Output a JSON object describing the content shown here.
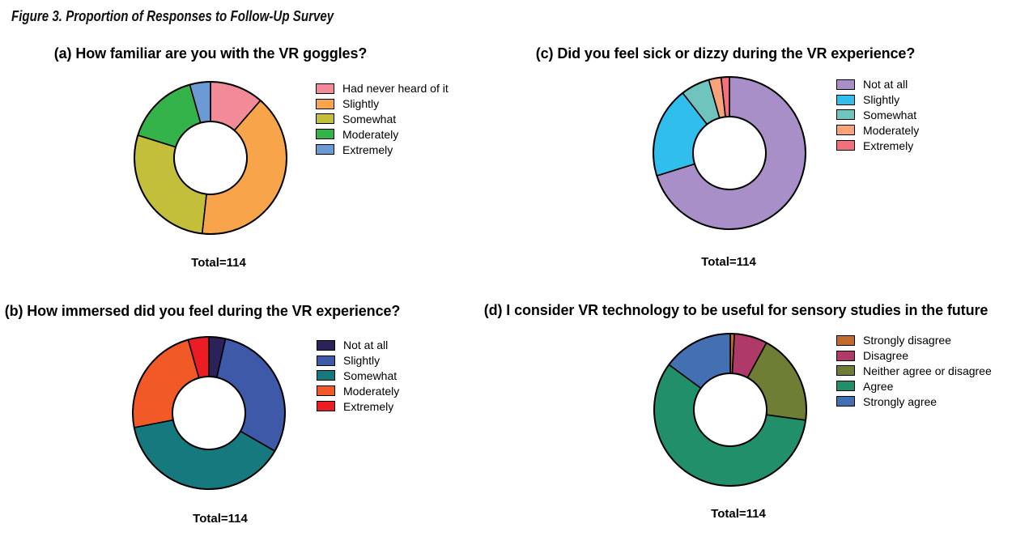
{
  "figure_title": "Figure 3. Proportion of Responses to Follow-Up Survey",
  "total_responses": 114,
  "chart_data": [
    {
      "id": "a",
      "type": "pie",
      "subtype": "donut",
      "title": "(a) How familiar are you with the VR goggles?",
      "categories": [
        "Had never heard of it",
        "Slightly",
        "Somewhat",
        "Moderately",
        "Extremely"
      ],
      "values": [
        13,
        46,
        32,
        18,
        5
      ],
      "colors": [
        "#F28A97",
        "#F7A44A",
        "#C4BF3B",
        "#33B34A",
        "#6C9AD5"
      ],
      "total_label": "Total=114",
      "legend_position": "right",
      "start_angle_deg": 0,
      "direction": "clockwise"
    },
    {
      "id": "b",
      "type": "pie",
      "subtype": "donut",
      "title": "(b) How immersed did you feel during the VR experience?",
      "categories": [
        "Not at all",
        "Slightly",
        "Somewhat",
        "Moderately",
        "Extremely"
      ],
      "values": [
        4,
        34,
        44,
        27,
        5
      ],
      "colors": [
        "#2B2259",
        "#3D59A8",
        "#15797E",
        "#F15A26",
        "#EC1C24"
      ],
      "total_label": "Total=114",
      "legend_position": "right",
      "start_angle_deg": 0,
      "direction": "clockwise"
    },
    {
      "id": "c",
      "type": "pie",
      "subtype": "donut",
      "title": "(c) Did you feel sick or dizzy during the VR experience?",
      "categories": [
        "Not at all",
        "Slightly",
        "Somewhat",
        "Moderately",
        "Extremely"
      ],
      "values": [
        80,
        22,
        7,
        3,
        2
      ],
      "colors": [
        "#A98FC7",
        "#30BEEC",
        "#6FC5BE",
        "#F8A379",
        "#F0707B"
      ],
      "total_label": "Total=114",
      "legend_position": "right",
      "start_angle_deg": 0,
      "direction": "clockwise"
    },
    {
      "id": "d",
      "type": "pie",
      "subtype": "donut",
      "title": "(d) I consider VR technology to be useful for sensory studies in the future",
      "categories": [
        "Strongly disagree",
        "Disagree",
        "Neither agree or disagree",
        "Agree",
        "Strongly agree"
      ],
      "values": [
        1,
        8,
        22,
        66,
        17
      ],
      "colors": [
        "#C06B2D",
        "#AF3A68",
        "#6E7E35",
        "#21906A",
        "#4270B2"
      ],
      "total_label": "Total=114",
      "legend_position": "right",
      "start_angle_deg": 0,
      "direction": "clockwise"
    }
  ]
}
